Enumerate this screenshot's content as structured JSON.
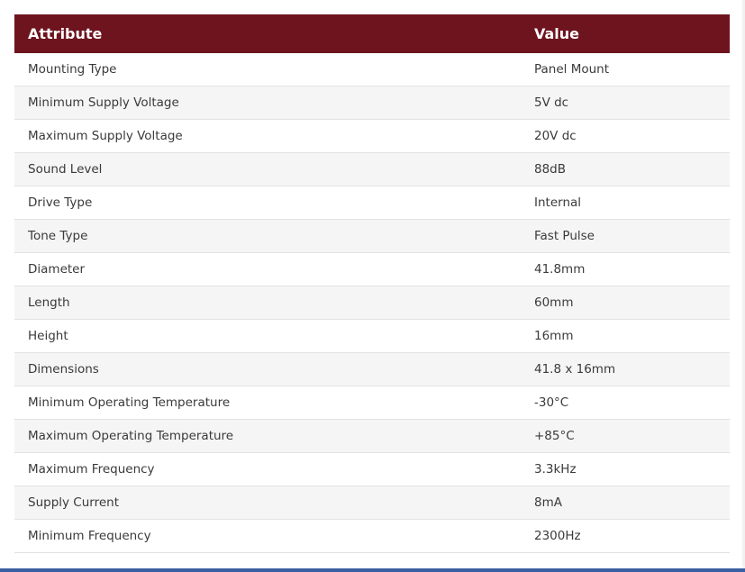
{
  "table": {
    "headers": {
      "attribute": "Attribute",
      "value": "Value"
    },
    "rows": [
      {
        "attribute": "Mounting Type",
        "value": "Panel Mount"
      },
      {
        "attribute": "Minimum Supply Voltage",
        "value": "5V dc"
      },
      {
        "attribute": "Maximum Supply Voltage",
        "value": "20V dc"
      },
      {
        "attribute": "Sound Level",
        "value": "88dB"
      },
      {
        "attribute": "Drive Type",
        "value": "Internal"
      },
      {
        "attribute": "Tone Type",
        "value": "Fast Pulse"
      },
      {
        "attribute": "Diameter",
        "value": "41.8mm"
      },
      {
        "attribute": "Length",
        "value": "60mm"
      },
      {
        "attribute": "Height",
        "value": "16mm"
      },
      {
        "attribute": "Dimensions",
        "value": "41.8 x 16mm"
      },
      {
        "attribute": "Minimum Operating Temperature",
        "value": "-30°C"
      },
      {
        "attribute": "Maximum Operating Temperature",
        "value": "+85°C"
      },
      {
        "attribute": "Maximum Frequency",
        "value": "3.3kHz"
      },
      {
        "attribute": "Supply Current",
        "value": "8mA"
      },
      {
        "attribute": "Minimum Frequency",
        "value": "2300Hz"
      }
    ]
  },
  "colors": {
    "header_background": "#6e141f",
    "header_text": "#ffffff",
    "row_alt_background": "#f5f5f5",
    "bottom_bar": "#3b5fa3"
  }
}
